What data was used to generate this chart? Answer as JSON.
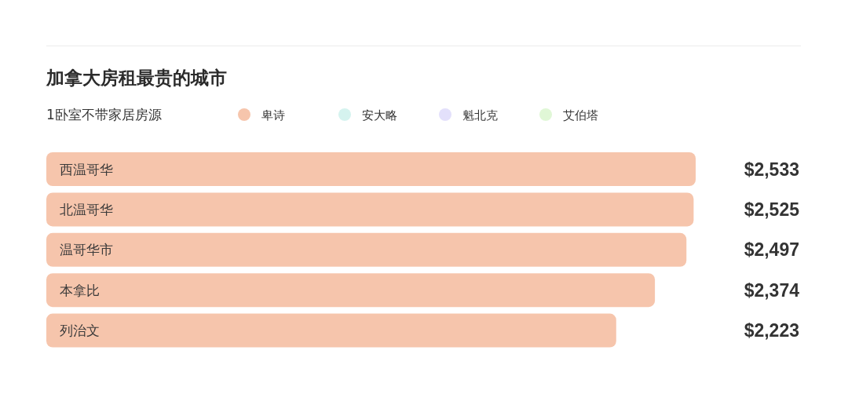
{
  "chart_data": {
    "type": "bar",
    "orientation": "horizontal",
    "title": "加拿大房租最贵的城市",
    "subtitle": "1卧室不带家居房源",
    "categories": [
      "西温哥华",
      "北温哥华",
      "温哥华市",
      "本拿比",
      "列治文"
    ],
    "series": [
      {
        "name": "卑诗",
        "color": "#f6c5ac",
        "values": [
          2533,
          2525,
          2497,
          2374,
          2223
        ],
        "value_labels": [
          "$2,533",
          "$2,525",
          "$2,497",
          "$2,374",
          "$2,223"
        ]
      },
      {
        "name": "安大略",
        "color": "#d5f3ef",
        "values": [
          null,
          null,
          null,
          null,
          null
        ]
      },
      {
        "name": "魁北克",
        "color": "#e3e0fb",
        "values": [
          null,
          null,
          null,
          null,
          null
        ]
      },
      {
        "name": "艾伯塔",
        "color": "#e0f7d6",
        "values": [
          null,
          null,
          null,
          null,
          null
        ]
      }
    ],
    "legend": "top",
    "grid": false
  }
}
